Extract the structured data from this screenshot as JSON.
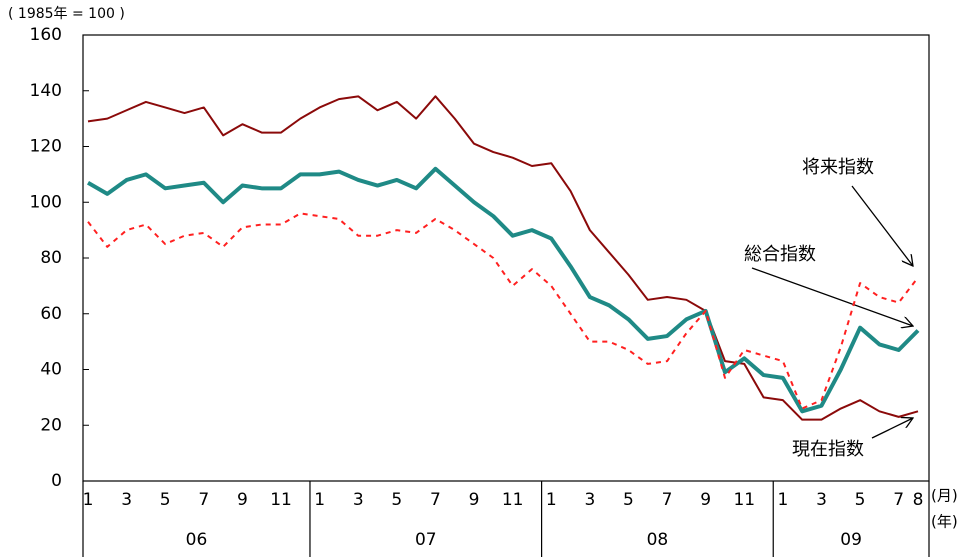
{
  "chart_data": {
    "type": "line",
    "unit_label": "( 1985年 = 100 )",
    "x_unit_month": "(月)",
    "x_unit_year": "(年)",
    "categories": [
      "1",
      null,
      "3",
      null,
      "5",
      null,
      "7",
      null,
      "9",
      null,
      "11",
      null,
      "1",
      null,
      "3",
      null,
      "5",
      null,
      "7",
      null,
      "9",
      null,
      "11",
      null,
      "1",
      null,
      "3",
      null,
      "5",
      null,
      "7",
      null,
      "9",
      null,
      "11",
      null,
      "1",
      null,
      "3",
      null,
      "5",
      null,
      "7",
      "8"
    ],
    "year_groups": [
      {
        "label": "06",
        "size": 12
      },
      {
        "label": "07",
        "size": 12
      },
      {
        "label": "08",
        "size": 12
      },
      {
        "label": "09",
        "size": 8
      }
    ],
    "series": [
      {
        "name": "現在指数",
        "color": "#8b0a0a",
        "style": "solid",
        "values": [
          129,
          130,
          133,
          136,
          134,
          132,
          134,
          124,
          128,
          125,
          125,
          130,
          134,
          137,
          138,
          133,
          136,
          130,
          138,
          130,
          121,
          118,
          116,
          113,
          114,
          104,
          90,
          82,
          74,
          65,
          66,
          65,
          61,
          43,
          42,
          30,
          29,
          22,
          22,
          26,
          29,
          25,
          23,
          25
        ]
      },
      {
        "name": "総合指数",
        "color": "#1f8a86",
        "style": "solid",
        "values": [
          107,
          103,
          108,
          110,
          105,
          106,
          107,
          100,
          106,
          105,
          105,
          110,
          110,
          111,
          108,
          106,
          108,
          105,
          112,
          106,
          100,
          95,
          88,
          90,
          87,
          77,
          66,
          63,
          58,
          51,
          52,
          58,
          61,
          39,
          44,
          38,
          37,
          25,
          27,
          40,
          55,
          49,
          47,
          54
        ]
      },
      {
        "name": "将来指数",
        "color": "#ff2020",
        "style": "dotted",
        "values": [
          93,
          84,
          90,
          92,
          85,
          88,
          89,
          84,
          91,
          92,
          92,
          96,
          95,
          94,
          88,
          88,
          90,
          89,
          94,
          90,
          85,
          80,
          70,
          76,
          70,
          60,
          50,
          50,
          47,
          42,
          43,
          53,
          61,
          37,
          47,
          45,
          43,
          26,
          29,
          48,
          71,
          66,
          64,
          73
        ]
      }
    ],
    "ylim": [
      0,
      160
    ],
    "yticks": [
      0,
      20,
      40,
      60,
      80,
      100,
      120,
      140,
      160
    ],
    "grid": false
  }
}
